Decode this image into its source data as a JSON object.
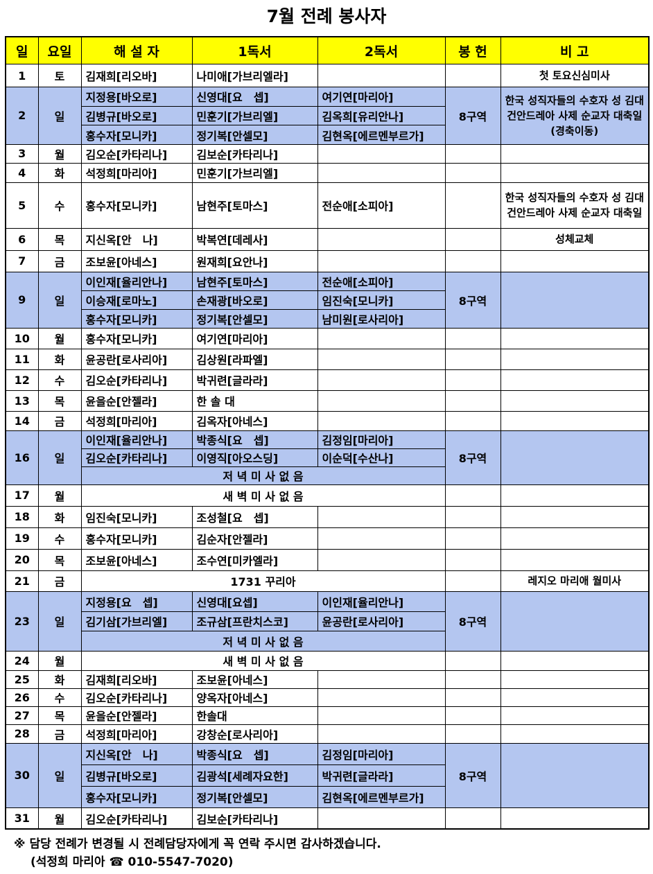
{
  "title": "7월 전례 봉사자",
  "headers": [
    "일",
    "요일",
    "해 설 자",
    "1독서",
    "2독서",
    "봉 헌",
    "비 고"
  ],
  "colors": {
    "header": "#ffff00",
    "sunday": "#b4c6f0"
  },
  "rows": [
    {
      "day": "1",
      "dow": "토",
      "sub": [
        [
          "김재희[리오바]",
          "나미애[가브리엘라]",
          ""
        ]
      ],
      "offering": "",
      "note": "첫 토요신심미사"
    },
    {
      "day": "2",
      "dow": "일",
      "blue": true,
      "sub": [
        [
          "지정용[바오로]",
          "신영대[요　셉]",
          "여기연[마리아]"
        ],
        [
          "김병규[바오로]",
          "민훈기[가브리엘]",
          "김옥희[유리안나]"
        ],
        [
          "홍수자[모니카]",
          "정기복[안셀모]",
          "김현옥[에르멘부르가]"
        ]
      ],
      "offering": "8구역",
      "note": "한국 성직자들의 수호자 성 김대건안드레아 사제 순교자 대축일(경축이동)"
    },
    {
      "day": "3",
      "dow": "월",
      "sub": [
        [
          "김오순[카타리나]",
          "김보순[카타리나]",
          ""
        ]
      ],
      "offering": "",
      "note": ""
    },
    {
      "day": "4",
      "dow": "화",
      "sub": [
        [
          "석정희[마리아]",
          "민훈기[가브리엘]",
          ""
        ]
      ],
      "offering": "",
      "note": ""
    },
    {
      "day": "5",
      "dow": "수",
      "sub": [
        [
          "홍수자[모니카]",
          "남현주[토마스]",
          "전순애[소피아]"
        ]
      ],
      "offering": "",
      "note": "한국 성직자들의 수호자 성 김대건안드레아 사제 순교자 대축일"
    },
    {
      "day": "6",
      "dow": "목",
      "sub": [
        [
          "지신옥[안　나]",
          "박복연[데레사]",
          ""
        ]
      ],
      "offering": "",
      "note": "성체교체"
    },
    {
      "day": "7",
      "dow": "금",
      "sub": [
        [
          "조보윤[아네스]",
          "원재희[요안나]",
          ""
        ]
      ],
      "offering": "",
      "note": ""
    },
    {
      "day": "9",
      "dow": "일",
      "blue": true,
      "sub": [
        [
          "이인재[율리안나]",
          "남현주[토마스]",
          "전순애[소피아]"
        ],
        [
          "이승재[로마노]",
          "손재광[바오로]",
          "임진숙[모니카]"
        ],
        [
          "홍수자[모니카]",
          "정기복[안셀모]",
          "남미원[로사리아]"
        ]
      ],
      "offering": "8구역",
      "note": ""
    },
    {
      "day": "10",
      "dow": "월",
      "sub": [
        [
          "홍수자[모니카]",
          "여기연[마리아]",
          ""
        ]
      ],
      "offering": "",
      "note": ""
    },
    {
      "day": "11",
      "dow": "화",
      "sub": [
        [
          "윤공란[로사리아]",
          "김상원[라파엘]",
          ""
        ]
      ],
      "offering": "",
      "note": ""
    },
    {
      "day": "12",
      "dow": "수",
      "sub": [
        [
          "김오순[카타리나]",
          "박귀련[글라라]",
          ""
        ]
      ],
      "offering": "",
      "note": ""
    },
    {
      "day": "13",
      "dow": "목",
      "sub": [
        [
          "윤을순[안젤라]",
          "한 솔 대",
          ""
        ]
      ],
      "offering": "",
      "note": ""
    },
    {
      "day": "14",
      "dow": "금",
      "sub": [
        [
          "석정희[마리아]",
          "김옥자[아네스]",
          ""
        ]
      ],
      "offering": "",
      "note": ""
    },
    {
      "day": "16",
      "dow": "일",
      "blue": true,
      "sub": [
        [
          "이인재[율리안나]",
          "박종식[요　셉]",
          "김정임[마리아]"
        ],
        [
          "김오순[카타리나]",
          "이영직[아오스딩]",
          "이순덕[수산나]"
        ],
        "저 녁 미 사 없 음"
      ],
      "offering": "8구역",
      "note": ""
    },
    {
      "day": "17",
      "dow": "월",
      "sub": [
        "새 벽 미 사 없 음"
      ],
      "offering": "",
      "note": ""
    },
    {
      "day": "18",
      "dow": "화",
      "sub": [
        [
          "임진숙[모니카]",
          "조성철[요　셉]",
          ""
        ]
      ],
      "offering": "",
      "note": ""
    },
    {
      "day": "19",
      "dow": "수",
      "sub": [
        [
          "홍수자[모니카]",
          "김순자[안젤라]",
          ""
        ]
      ],
      "offering": "",
      "note": ""
    },
    {
      "day": "20",
      "dow": "목",
      "sub": [
        [
          "조보윤[아네스]",
          "조수연[미카엘라]",
          ""
        ]
      ],
      "offering": "",
      "note": ""
    },
    {
      "day": "21",
      "dow": "금",
      "sub": [
        "1731 꾸리아"
      ],
      "offering": "",
      "note": "레지오 마리애 월미사"
    },
    {
      "day": "23",
      "dow": "일",
      "blue": true,
      "sub": [
        [
          "지정용[요　셉]",
          "신영대[요셉]",
          "이인재[율리안나]"
        ],
        [
          "김기삼[가브리엘]",
          "조규삼[프란치스코]",
          "윤공란[로사리아]"
        ],
        "저 녁 미 사 없 음"
      ],
      "offering": "8구역",
      "note": ""
    },
    {
      "day": "24",
      "dow": "월",
      "sub": [
        "새 벽 미 사 없 음"
      ],
      "offering": "",
      "note": ""
    },
    {
      "day": "25",
      "dow": "화",
      "sub": [
        [
          "김재희[리오바]",
          "조보윤[아네스]",
          ""
        ]
      ],
      "offering": "",
      "note": ""
    },
    {
      "day": "26",
      "dow": "수",
      "sub": [
        [
          "김오순[카타리나]",
          "양옥자[아네스]",
          ""
        ]
      ],
      "offering": "",
      "note": ""
    },
    {
      "day": "27",
      "dow": "목",
      "sub": [
        [
          "윤을순[안젤라]",
          "한솔대",
          ""
        ]
      ],
      "offering": "",
      "note": ""
    },
    {
      "day": "28",
      "dow": "금",
      "sub": [
        [
          "석정희[마리아]",
          "강창순[로사리아]",
          ""
        ]
      ],
      "offering": "",
      "note": ""
    },
    {
      "day": "30",
      "dow": "일",
      "blue": true,
      "sub": [
        [
          "지신옥[안　나]",
          "박종식[요　셉]",
          "김정임[마리아]"
        ],
        [
          "김병규[바오로]",
          "김광석[세례자요한]",
          "박귀련[글라라]"
        ],
        [
          "홍수자[모니카]",
          "정기복[안셀모]",
          "김현옥[에르멘부르가]"
        ]
      ],
      "offering": "8구역",
      "note": ""
    },
    {
      "day": "31",
      "dow": "월",
      "sub": [
        [
          "김오순[카타리나]",
          "김보순[카타리나]",
          ""
        ]
      ],
      "offering": "",
      "note": ""
    }
  ],
  "footer": {
    "line1": "※ 담당 전례가 변경될 시 전례담당자에게 꼭 연락 주시면 감사하겠습니다.",
    "line2": "(석정희 마리아 ☎ 010-5547-7020)"
  }
}
